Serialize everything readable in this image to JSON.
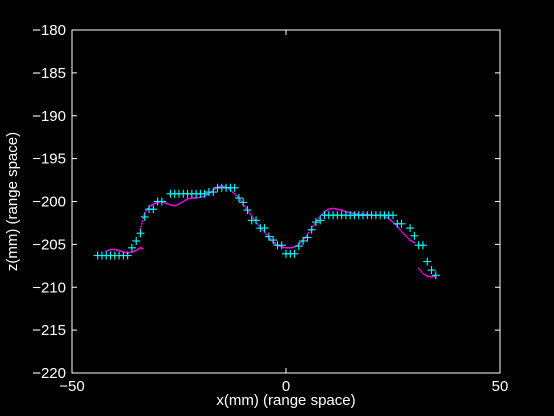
{
  "chart_data": {
    "type": "scatter",
    "title": "",
    "xlabel": "x(mm) (range space)",
    "ylabel": "z(mm) (range space)",
    "xlim": [
      -50,
      50
    ],
    "ylim": [
      -220,
      -180
    ],
    "xticks": [
      -50,
      0,
      50
    ],
    "yticks": [
      -180,
      -185,
      -190,
      -195,
      -200,
      -205,
      -210,
      -215,
      -220
    ],
    "grid": false,
    "legend": "none",
    "colors": {
      "background": "#000000",
      "axes": "#ffffff",
      "text": "#ffffff",
      "line_series": "#ff00ff",
      "marker_series": "#00ffff"
    },
    "series": [
      {
        "style": "line-dots",
        "color": "#ff00ff",
        "segments": [
          [
            [
              -42,
              -205.8
            ],
            [
              -41,
              -205.6
            ],
            [
              -40,
              -205.6
            ],
            [
              -39,
              -205.7
            ],
            [
              -38,
              -205.9
            ],
            [
              -37,
              -206.0
            ],
            [
              -36,
              -205.9
            ],
            [
              -35,
              -205.7
            ],
            [
              -34,
              -205.4
            ],
            [
              -33.5,
              -205.5
            ]
          ],
          [
            [
              -34,
              -203.2
            ],
            [
              -33.5,
              -202.3
            ],
            [
              -33,
              -201.3
            ],
            [
              -32,
              -200.6
            ],
            [
              -31,
              -200.3
            ],
            [
              -30,
              -200.1
            ],
            [
              -29,
              -200.0
            ],
            [
              -28,
              -200.2
            ],
            [
              -27,
              -200.4
            ],
            [
              -26,
              -200.5
            ],
            [
              -25,
              -200.3
            ],
            [
              -24,
              -200.0
            ],
            [
              -23,
              -199.7
            ],
            [
              -22,
              -199.6
            ],
            [
              -21,
              -199.6
            ],
            [
              -20,
              -199.5
            ],
            [
              -19,
              -199.4
            ],
            [
              -18,
              -199.1
            ],
            [
              -17,
              -198.7
            ],
            [
              -16,
              -198.3
            ],
            [
              -15,
              -198.2
            ],
            [
              -14,
              -198.3
            ],
            [
              -13,
              -198.6
            ],
            [
              -12,
              -199.1
            ],
            [
              -11,
              -199.6
            ],
            [
              -10,
              -200.3
            ],
            [
              -9,
              -201.0
            ],
            [
              -8,
              -201.7
            ],
            [
              -7,
              -202.4
            ],
            [
              -6,
              -203.0
            ],
            [
              -5,
              -203.6
            ],
            [
              -4,
              -204.2
            ],
            [
              -3,
              -204.7
            ],
            [
              -2,
              -205.1
            ],
            [
              -1,
              -205.3
            ],
            [
              0,
              -205.4
            ],
            [
              1,
              -205.4
            ],
            [
              2,
              -205.3
            ],
            [
              3,
              -205.0
            ],
            [
              4,
              -204.5
            ],
            [
              5,
              -203.9
            ],
            [
              6,
              -203.1
            ],
            [
              7,
              -202.4
            ],
            [
              8,
              -201.7
            ],
            [
              9,
              -201.2
            ],
            [
              10,
              -200.9
            ],
            [
              11,
              -200.8
            ],
            [
              12,
              -200.9
            ],
            [
              13,
              -201.0
            ],
            [
              14,
              -201.2
            ],
            [
              15,
              -201.3
            ],
            [
              16,
              -201.4
            ],
            [
              17,
              -201.5
            ],
            [
              18,
              -201.5
            ],
            [
              19,
              -201.5
            ],
            [
              20,
              -201.6
            ],
            [
              21,
              -201.6
            ],
            [
              22,
              -201.6
            ],
            [
              23,
              -201.7
            ],
            [
              24,
              -202.0
            ],
            [
              25,
              -202.4
            ],
            [
              26,
              -202.9
            ],
            [
              27,
              -203.5
            ],
            [
              28,
              -204.0
            ],
            [
              29,
              -204.5
            ],
            [
              30,
              -204.8
            ]
          ],
          [
            [
              31,
              -207.8
            ],
            [
              32,
              -208.4
            ],
            [
              33,
              -208.7
            ],
            [
              34,
              -208.8
            ],
            [
              35,
              -208.7
            ]
          ]
        ]
      },
      {
        "style": "plus-markers",
        "color": "#00ffff",
        "points": [
          [
            -44,
            -206.3
          ],
          [
            -43,
            -206.3
          ],
          [
            -42,
            -206.3
          ],
          [
            -41,
            -206.3
          ],
          [
            -40,
            -206.3
          ],
          [
            -39,
            -206.3
          ],
          [
            -38,
            -206.3
          ],
          [
            -37,
            -206.3
          ],
          [
            -36,
            -205.4
          ],
          [
            -35,
            -204.6
          ],
          [
            -34,
            -203.7
          ],
          [
            -33,
            -201.8
          ],
          [
            -32,
            -200.9
          ],
          [
            -31,
            -200.9
          ],
          [
            -30,
            -200.0
          ],
          [
            -29,
            -200.0
          ],
          [
            -27,
            -199.1
          ],
          [
            -26,
            -199.1
          ],
          [
            -25,
            -199.1
          ],
          [
            -24,
            -199.1
          ],
          [
            -23,
            -199.1
          ],
          [
            -22,
            -199.1
          ],
          [
            -21,
            -199.1
          ],
          [
            -20,
            -199.1
          ],
          [
            -19,
            -199.1
          ],
          [
            -18,
            -198.9
          ],
          [
            -17,
            -198.9
          ],
          [
            -16,
            -198.4
          ],
          [
            -15,
            -198.4
          ],
          [
            -14,
            -198.4
          ],
          [
            -13,
            -198.4
          ],
          [
            -12,
            -198.4
          ],
          [
            -11,
            -199.6
          ],
          [
            -10,
            -200.1
          ],
          [
            -9,
            -201.0
          ],
          [
            -8,
            -202.2
          ],
          [
            -7,
            -202.2
          ],
          [
            -6,
            -203.1
          ],
          [
            -5,
            -203.1
          ],
          [
            -4,
            -204.1
          ],
          [
            -3,
            -204.5
          ],
          [
            -2,
            -205.1
          ],
          [
            -1,
            -205.1
          ],
          [
            0,
            -206.1
          ],
          [
            1,
            -206.1
          ],
          [
            2,
            -206.1
          ],
          [
            3,
            -205.2
          ],
          [
            4,
            -204.6
          ],
          [
            5,
            -204.2
          ],
          [
            6,
            -203.3
          ],
          [
            7,
            -202.4
          ],
          [
            8,
            -202.2
          ],
          [
            9,
            -201.6
          ],
          [
            10,
            -201.6
          ],
          [
            11,
            -201.6
          ],
          [
            12,
            -201.6
          ],
          [
            13,
            -201.6
          ],
          [
            14,
            -201.6
          ],
          [
            15,
            -201.6
          ],
          [
            16,
            -201.6
          ],
          [
            17,
            -201.6
          ],
          [
            18,
            -201.6
          ],
          [
            19,
            -201.6
          ],
          [
            20,
            -201.6
          ],
          [
            21,
            -201.6
          ],
          [
            22,
            -201.6
          ],
          [
            23,
            -201.6
          ],
          [
            24,
            -201.6
          ],
          [
            25,
            -201.6
          ],
          [
            26,
            -202.6
          ],
          [
            27,
            -202.6
          ],
          [
            29,
            -203.1
          ],
          [
            30,
            -204.0
          ],
          [
            31,
            -205.1
          ],
          [
            32,
            -205.1
          ],
          [
            33,
            -207.0
          ],
          [
            34,
            -208.0
          ],
          [
            35,
            -208.6
          ]
        ]
      }
    ]
  }
}
